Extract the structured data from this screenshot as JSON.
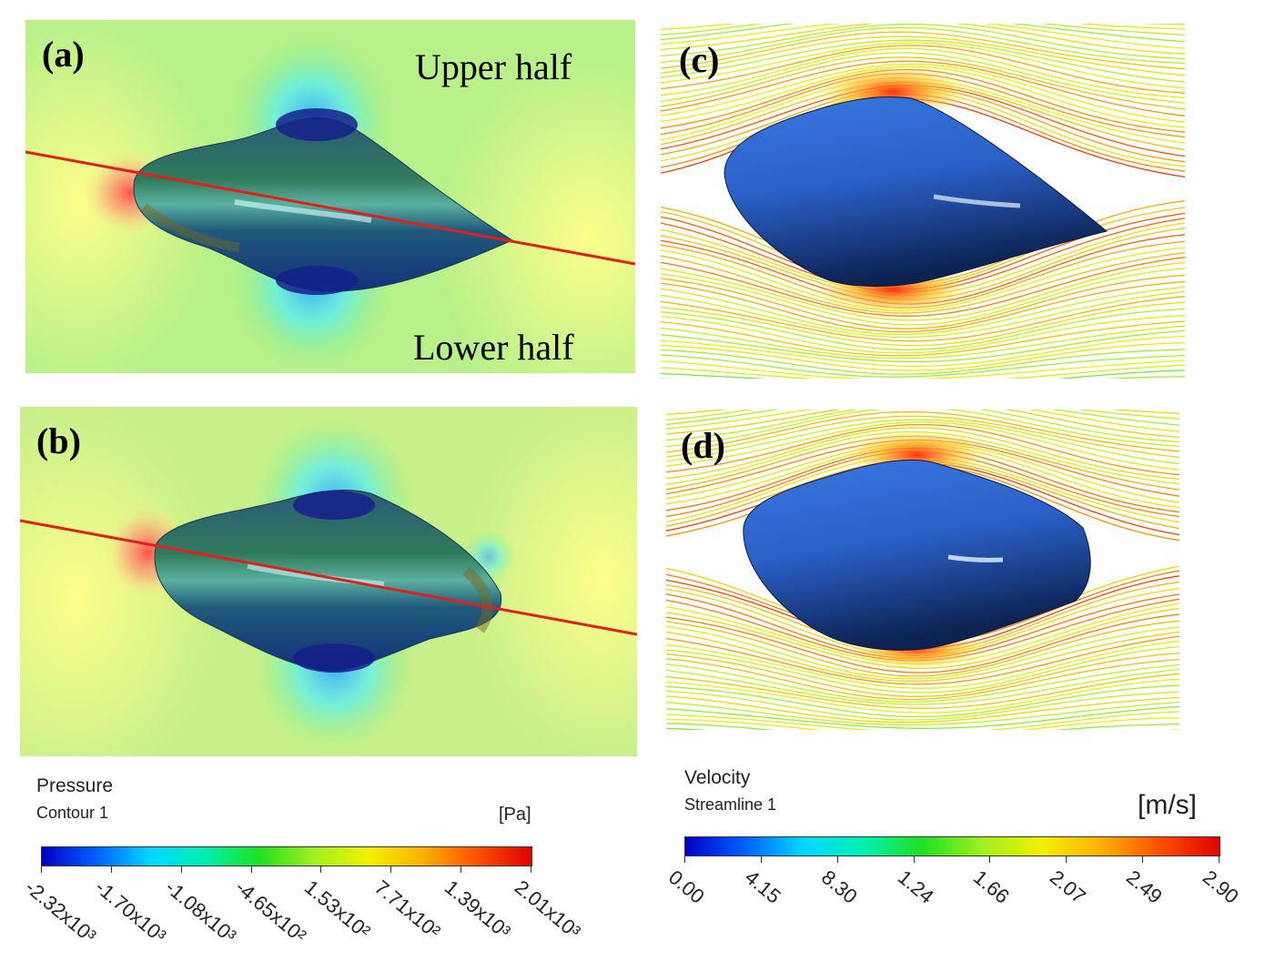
{
  "panels": {
    "a": {
      "label": "(a)",
      "upper_text": "Upper half",
      "lower_text": "Lower half"
    },
    "b": {
      "label": "(b)"
    },
    "c": {
      "label": "(c)"
    },
    "d": {
      "label": "(d)"
    }
  },
  "pressure_legend": {
    "title": "Pressure",
    "subtitle": "Contour 1",
    "unit": "[Pa]",
    "ticks": [
      "-2.32x10³",
      "-1.70x10³",
      "-1.08x10³",
      "-4.65x10²",
      "1.53x10²",
      "7.71x10²",
      "1.39x10³",
      "2.01x10³"
    ]
  },
  "velocity_legend": {
    "title": "Velocity",
    "subtitle": "Streamline 1",
    "unit": "[m/s]",
    "ticks": [
      "0.00",
      "4.15",
      "8.30",
      "1.24",
      "1.66",
      "2.07",
      "2.49",
      "2.90"
    ]
  },
  "colors": {
    "cut_line": "#e0201a",
    "body_dark": "#0f2a6a",
    "body_light": "#2f6ad8"
  }
}
